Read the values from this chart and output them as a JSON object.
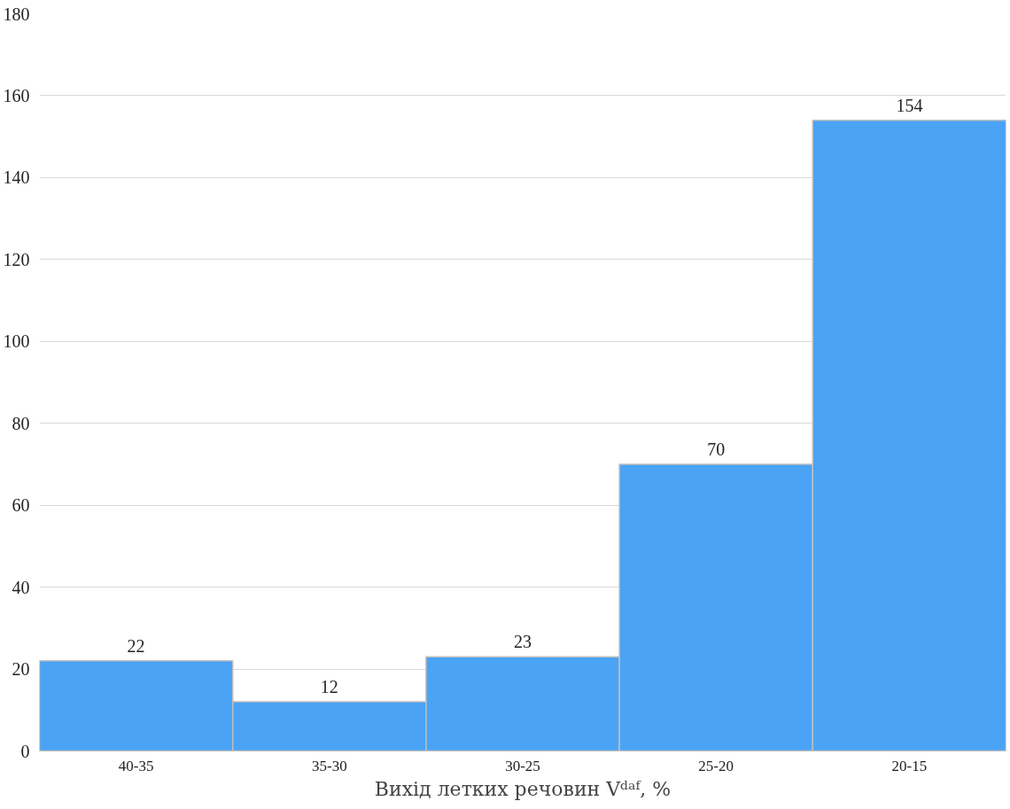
{
  "chart_data": {
    "type": "bar",
    "xlabel": "Вихід летких речовин Vᵈᵃᶠ, %",
    "categories": [
      "40-35",
      "35-30",
      "30-25",
      "25-20",
      "20-15"
    ],
    "values": [
      22,
      12,
      23,
      70,
      154
    ],
    "color": "#4aa3f5",
    "ylim": [
      0,
      180
    ],
    "yticks": [
      0,
      20,
      40,
      60,
      80,
      100,
      120,
      140,
      160,
      180
    ],
    "grid": "y",
    "data_labels": true
  }
}
